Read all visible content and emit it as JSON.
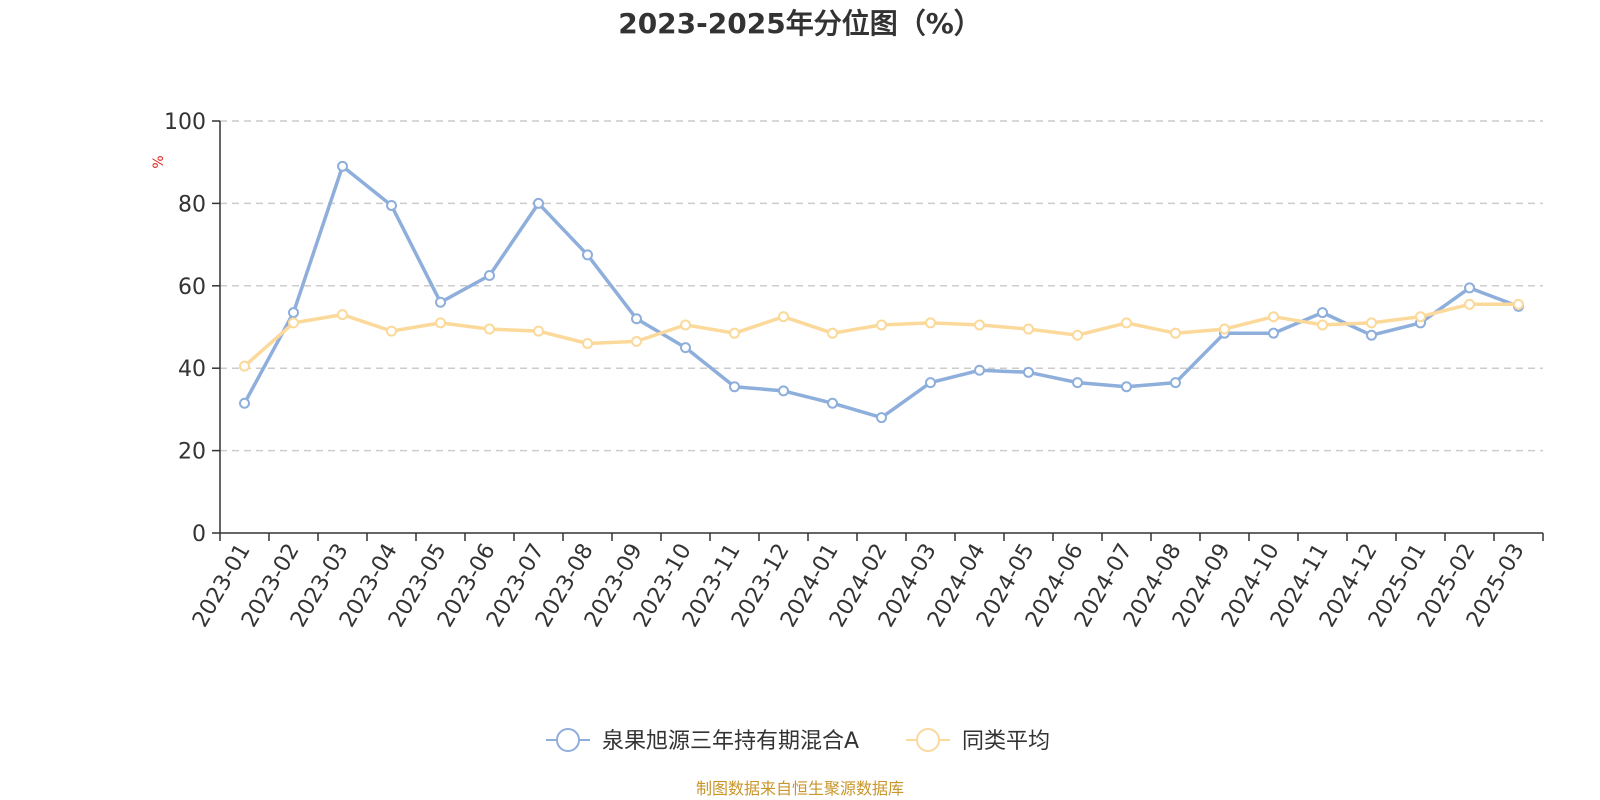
{
  "colors": {
    "series_a": "#8eaedb",
    "series_b": "#fbd99a",
    "grid": "#cccccc",
    "axis": "#333333",
    "unit": "#e0261c",
    "source": "#c8962a"
  },
  "chart_data": {
    "type": "line",
    "title": "2023-2025年分位图（%）",
    "ylabel": "%",
    "xlabel": "",
    "ylim": [
      0,
      100
    ],
    "yticks": [
      0,
      20,
      40,
      60,
      80,
      100
    ],
    "grid": true,
    "legend_position": "bottom-center",
    "categories": [
      "2023-01",
      "2023-02",
      "2023-03",
      "2023-04",
      "2023-05",
      "2023-06",
      "2023-07",
      "2023-08",
      "2023-09",
      "2023-10",
      "2023-11",
      "2023-12",
      "2024-01",
      "2024-02",
      "2024-03",
      "2024-04",
      "2024-05",
      "2024-06",
      "2024-07",
      "2024-08",
      "2024-09",
      "2024-10",
      "2024-11",
      "2024-12",
      "2025-01",
      "2025-02",
      "2025-03"
    ],
    "series": [
      {
        "name": "泉果旭源三年持有期混合A",
        "color_key": "series_a",
        "values": [
          31.5,
          53.5,
          89.0,
          79.5,
          56.0,
          62.5,
          80.0,
          67.5,
          52.0,
          45.0,
          35.5,
          34.5,
          31.5,
          28.0,
          36.5,
          39.5,
          39.0,
          36.5,
          35.5,
          36.5,
          48.5,
          48.5,
          53.5,
          48.0,
          51.0,
          59.5,
          55.0
        ]
      },
      {
        "name": "同类平均",
        "color_key": "series_b",
        "values": [
          40.5,
          51.0,
          53.0,
          49.0,
          51.0,
          49.5,
          49.0,
          46.0,
          46.5,
          50.5,
          48.5,
          52.5,
          48.5,
          50.5,
          51.0,
          50.5,
          49.5,
          48.0,
          51.0,
          48.5,
          49.5,
          52.5,
          50.5,
          51.0,
          52.5,
          55.5,
          55.5
        ]
      }
    ]
  },
  "footer": {
    "source_text": "制图数据来自恒生聚源数据库"
  }
}
